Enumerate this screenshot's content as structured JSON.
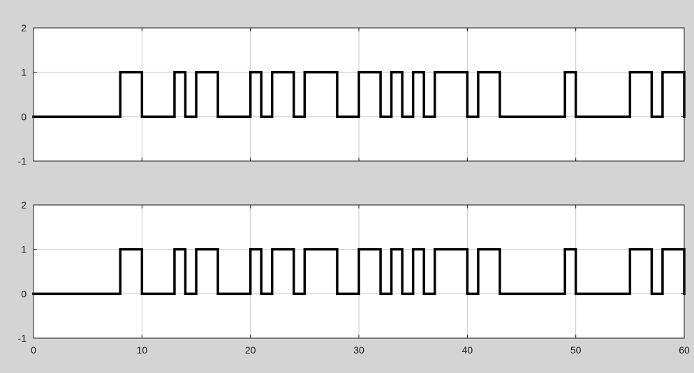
{
  "colors": {
    "background": "#d4d4d4",
    "axes_face": "#ffffff",
    "axes_edge": "#1a1a1a",
    "grid": "#c8c8c8",
    "line": "#000000"
  },
  "chart_data": [
    {
      "type": "line",
      "step": true,
      "grid": true,
      "xlim": [
        0,
        60
      ],
      "ylim": [
        -1,
        2
      ],
      "xticks": [
        0,
        10,
        20,
        30,
        40,
        50,
        60
      ],
      "yticks": [
        -1,
        0,
        1,
        2
      ],
      "ytick_labels": [
        "-1",
        "0",
        "1",
        "2"
      ],
      "xtick_labels": [],
      "series": [
        {
          "x": [
            0,
            8,
            8,
            10,
            10,
            13,
            13,
            14,
            14,
            15,
            15,
            17,
            17,
            20,
            20,
            21,
            21,
            22,
            22,
            24,
            24,
            25,
            25,
            28,
            28,
            30,
            30,
            32,
            32,
            33,
            33,
            34,
            34,
            35,
            35,
            36,
            36,
            37,
            37,
            40,
            40,
            41,
            41,
            43,
            43,
            49,
            49,
            50,
            50,
            55,
            55,
            57,
            57,
            58,
            58,
            60,
            60
          ],
          "y": [
            0,
            0,
            1,
            1,
            0,
            0,
            1,
            1,
            0,
            0,
            1,
            1,
            0,
            0,
            1,
            1,
            0,
            0,
            1,
            1,
            0,
            0,
            1,
            1,
            0,
            0,
            1,
            1,
            0,
            0,
            1,
            1,
            0,
            0,
            1,
            1,
            0,
            0,
            1,
            1,
            0,
            0,
            1,
            1,
            0,
            0,
            1,
            1,
            0,
            0,
            1,
            1,
            0,
            0,
            1,
            1,
            0
          ]
        }
      ]
    },
    {
      "type": "line",
      "step": true,
      "grid": true,
      "xlim": [
        0,
        60
      ],
      "ylim": [
        -1,
        2
      ],
      "xticks": [
        0,
        10,
        20,
        30,
        40,
        50,
        60
      ],
      "yticks": [
        -1,
        0,
        1,
        2
      ],
      "ytick_labels": [
        "-1",
        "0",
        "1",
        "2"
      ],
      "xtick_labels": [
        "0",
        "10",
        "20",
        "30",
        "40",
        "50",
        "60"
      ],
      "series": [
        {
          "x": [
            0,
            8,
            8,
            10,
            10,
            13,
            13,
            14,
            14,
            15,
            15,
            17,
            17,
            20,
            20,
            21,
            21,
            22,
            22,
            24,
            24,
            25,
            25,
            28,
            28,
            30,
            30,
            32,
            32,
            33,
            33,
            34,
            34,
            35,
            35,
            36,
            36,
            37,
            37,
            40,
            40,
            41,
            41,
            43,
            43,
            49,
            49,
            50,
            50,
            55,
            55,
            57,
            57,
            58,
            58,
            60,
            60
          ],
          "y": [
            0,
            0,
            1,
            1,
            0,
            0,
            1,
            1,
            0,
            0,
            1,
            1,
            0,
            0,
            1,
            1,
            0,
            0,
            1,
            1,
            0,
            0,
            1,
            1,
            0,
            0,
            1,
            1,
            0,
            0,
            1,
            1,
            0,
            0,
            1,
            1,
            0,
            0,
            1,
            1,
            0,
            0,
            1,
            1,
            0,
            0,
            1,
            1,
            0,
            0,
            1,
            1,
            0,
            0,
            1,
            1,
            0
          ]
        }
      ]
    }
  ]
}
